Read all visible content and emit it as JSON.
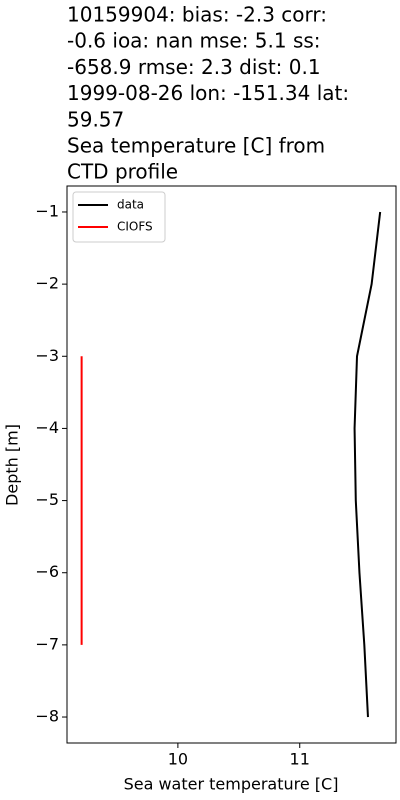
{
  "chart_data": {
    "type": "line",
    "title": [
      "10159904: bias: -2.3  corr:",
      "-0.6  ioa: nan  mse: 5.1  ss:",
      "-658.9  rmse: 2.3  dist: 0.1",
      "1999-08-26 lon: -151.34 lat:",
      "59.57",
      "Sea temperature [C] from",
      "CTD profile"
    ],
    "xlabel": "Sea water temperature [C]",
    "ylabel": "Depth [m]",
    "xlim": [
      9.09,
      11.79
    ],
    "xticks": [
      10,
      11
    ],
    "ylim": [
      -8.36,
      -0.64
    ],
    "yticks": [
      {
        "value": -8,
        "label": "−8"
      },
      {
        "value": -7,
        "label": "−7"
      },
      {
        "value": -6,
        "label": "−6"
      },
      {
        "value": -5,
        "label": "−5"
      },
      {
        "value": -4,
        "label": "−4"
      },
      {
        "value": -3,
        "label": "−3"
      },
      {
        "value": -2,
        "label": "−2"
      },
      {
        "value": -1,
        "label": "−1"
      }
    ],
    "legend": "upper left",
    "series": [
      {
        "name": "data",
        "color": "#000000",
        "x": [
          11.66,
          11.59,
          11.47,
          11.45,
          11.46,
          11.49,
          11.53,
          11.56
        ],
        "values": [
          -1,
          -2,
          -3,
          -4,
          -5,
          -6,
          -7,
          -8
        ]
      },
      {
        "name": "CIOFS",
        "color": "#ff0000",
        "x": [
          9.21,
          9.21,
          9.21,
          9.21,
          9.21
        ],
        "values": [
          -3,
          -4,
          -5,
          -6,
          -7
        ]
      }
    ]
  }
}
